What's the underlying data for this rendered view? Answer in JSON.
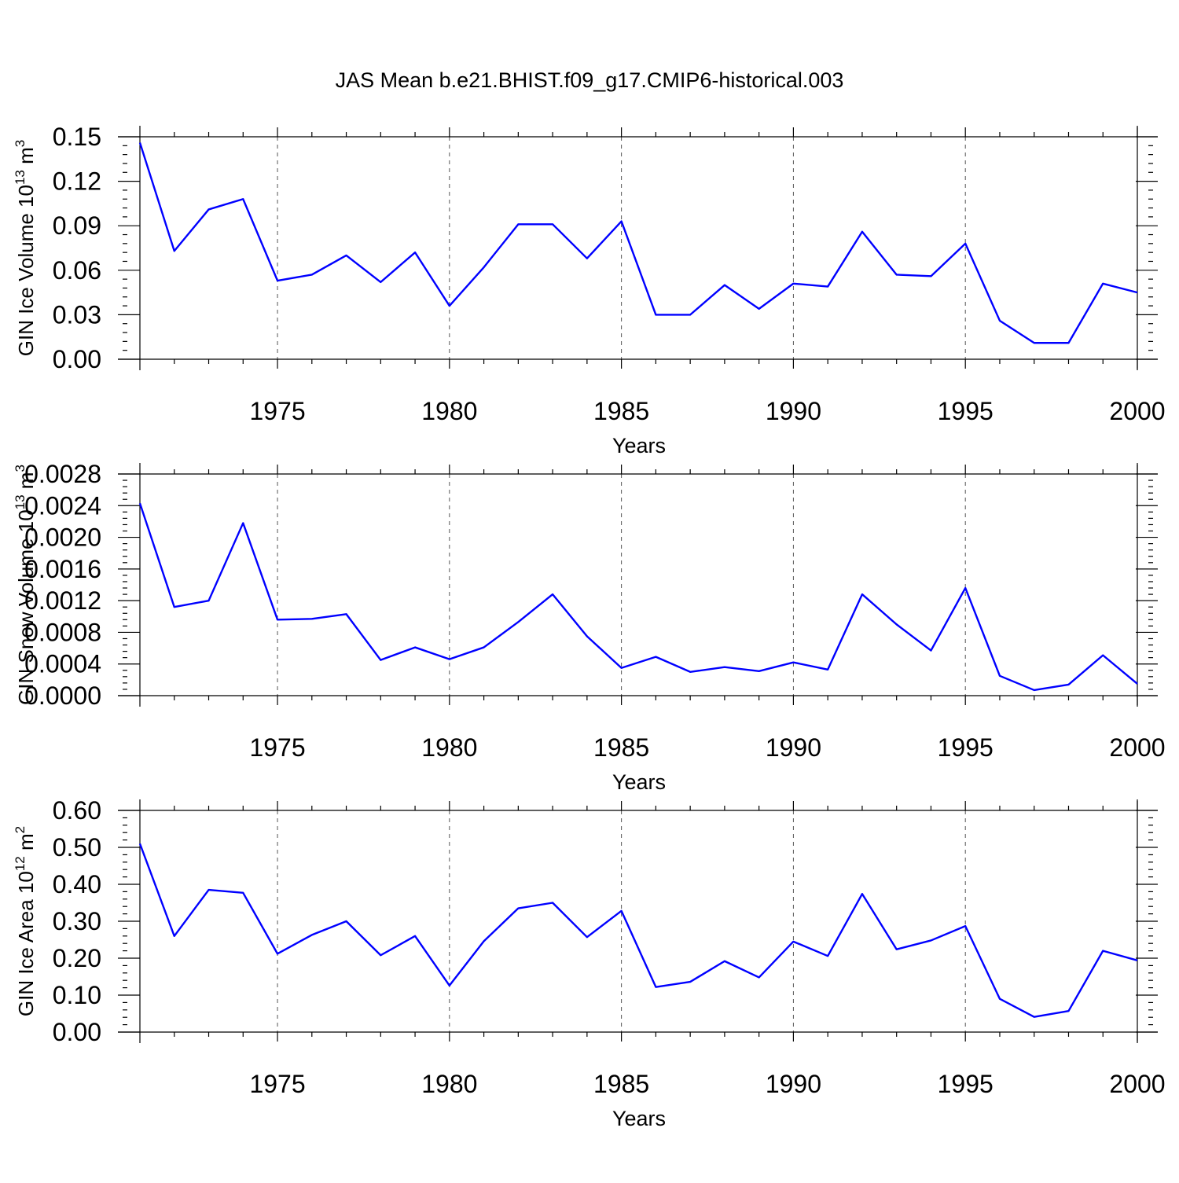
{
  "title": "JAS Mean b.e21.BHIST.f09_g17.CMIP6-historical.003",
  "chart_data": [
    {
      "type": "line",
      "ylabel": "GIN Ice Volume 10",
      "ylabel_sup": "13",
      "ylabel_unit": " m",
      "ylabel_unit_sup": "3",
      "xlabel": "Years",
      "xlim": [
        1971,
        2000
      ],
      "ylim": [
        0,
        0.15
      ],
      "yticks": [
        0.0,
        0.03,
        0.06,
        0.09,
        0.12,
        0.15
      ],
      "yticklabels": [
        "0.00",
        "0.03",
        "0.06",
        "0.09",
        "0.12",
        "0.15"
      ],
      "xticks": [
        1975,
        1980,
        1985,
        1990,
        1995,
        2000
      ],
      "xticklabels": [
        "1975",
        "1980",
        "1985",
        "1990",
        "1995",
        "2000"
      ],
      "x": [
        1971,
        1972,
        1973,
        1974,
        1975,
        1976,
        1977,
        1978,
        1979,
        1980,
        1981,
        1982,
        1983,
        1984,
        1985,
        1986,
        1987,
        1988,
        1989,
        1990,
        1991,
        1992,
        1993,
        1994,
        1995,
        1996,
        1997,
        1998,
        1999,
        2000
      ],
      "series": [
        {
          "name": "GIN Ice Volume",
          "color": "#0000ff",
          "values": [
            0.146,
            0.073,
            0.101,
            0.108,
            0.053,
            0.057,
            0.07,
            0.052,
            0.072,
            0.036,
            0.062,
            0.091,
            0.091,
            0.068,
            0.093,
            0.03,
            0.03,
            0.05,
            0.034,
            0.051,
            0.049,
            0.086,
            0.057,
            0.056,
            0.078,
            0.026,
            0.011,
            0.011,
            0.051,
            0.045
          ]
        }
      ]
    },
    {
      "type": "line",
      "ylabel": "GIN Snow Volume 10",
      "ylabel_sup": "13",
      "ylabel_unit": " m",
      "ylabel_unit_sup": "3",
      "xlabel": "Years",
      "xlim": [
        1971,
        2000
      ],
      "ylim": [
        0,
        0.0028
      ],
      "yticks": [
        0.0,
        0.0004,
        0.0008,
        0.0012,
        0.0016,
        0.002,
        0.0024,
        0.0028
      ],
      "yticklabels": [
        "0.0000",
        "0.0004",
        "0.0008",
        "0.0012",
        "0.0016",
        "0.0020",
        "0.0024",
        "0.0028"
      ],
      "xticks": [
        1975,
        1980,
        1985,
        1990,
        1995,
        2000
      ],
      "xticklabels": [
        "1975",
        "1980",
        "1985",
        "1990",
        "1995",
        "2000"
      ],
      "x": [
        1971,
        1972,
        1973,
        1974,
        1975,
        1976,
        1977,
        1978,
        1979,
        1980,
        1981,
        1982,
        1983,
        1984,
        1985,
        1986,
        1987,
        1988,
        1989,
        1990,
        1991,
        1992,
        1993,
        1994,
        1995,
        1996,
        1997,
        1998,
        1999,
        2000
      ],
      "series": [
        {
          "name": "GIN Snow Volume",
          "color": "#0000ff",
          "values": [
            0.00243,
            0.00112,
            0.0012,
            0.00218,
            0.00096,
            0.00097,
            0.00103,
            0.00045,
            0.00061,
            0.00046,
            0.00061,
            0.00093,
            0.00128,
            0.00075,
            0.00035,
            0.00049,
            0.0003,
            0.00036,
            0.00031,
            0.00042,
            0.00033,
            0.00128,
            0.0009,
            0.00057,
            0.00136,
            0.00025,
            7e-05,
            0.00014,
            0.00051,
            0.00015
          ]
        }
      ]
    },
    {
      "type": "line",
      "ylabel": "GIN Ice Area 10",
      "ylabel_sup": "12",
      "ylabel_unit": " m",
      "ylabel_unit_sup": "2",
      "xlabel": "Years",
      "xlim": [
        1971,
        2000
      ],
      "ylim": [
        0,
        0.6
      ],
      "yticks": [
        0.0,
        0.1,
        0.2,
        0.3,
        0.4,
        0.5,
        0.6
      ],
      "yticklabels": [
        "0.00",
        "0.10",
        "0.20",
        "0.30",
        "0.40",
        "0.50",
        "0.60"
      ],
      "xticks": [
        1975,
        1980,
        1985,
        1990,
        1995,
        2000
      ],
      "xticklabels": [
        "1975",
        "1980",
        "1985",
        "1990",
        "1995",
        "2000"
      ],
      "x": [
        1971,
        1972,
        1973,
        1974,
        1975,
        1976,
        1977,
        1978,
        1979,
        1980,
        1981,
        1982,
        1983,
        1984,
        1985,
        1986,
        1987,
        1988,
        1989,
        1990,
        1991,
        1992,
        1993,
        1994,
        1995,
        1996,
        1997,
        1998,
        1999,
        2000
      ],
      "series": [
        {
          "name": "GIN Ice Area",
          "color": "#0000ff",
          "values": [
            0.51,
            0.26,
            0.385,
            0.377,
            0.212,
            0.263,
            0.3,
            0.208,
            0.26,
            0.126,
            0.246,
            0.335,
            0.35,
            0.257,
            0.328,
            0.122,
            0.136,
            0.192,
            0.148,
            0.245,
            0.206,
            0.374,
            0.224,
            0.248,
            0.287,
            0.09,
            0.041,
            0.057,
            0.22,
            0.194
          ]
        }
      ]
    }
  ]
}
